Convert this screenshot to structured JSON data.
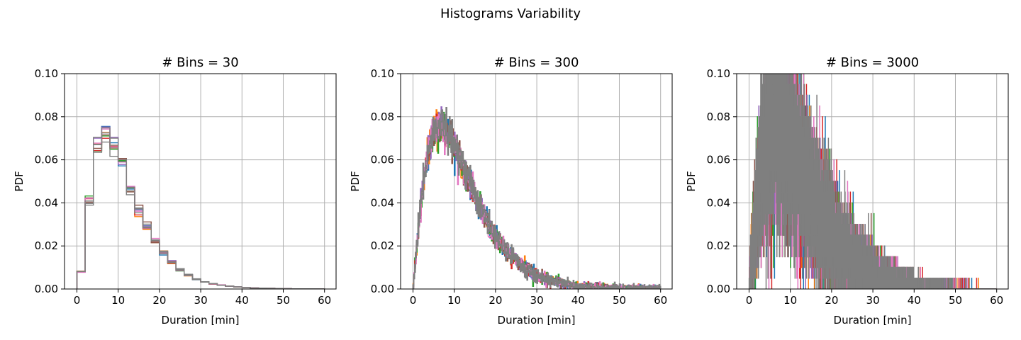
{
  "figure": {
    "title": "Histograms Variability"
  },
  "chart_data": [
    {
      "type": "histogram",
      "title": "# Bins = 30",
      "xlabel": "Duration [min]",
      "ylabel": "PDF",
      "xlim": [
        -3,
        62.8
      ],
      "ylim": [
        0,
        0.1
      ],
      "xticks": [
        0,
        10,
        20,
        30,
        40,
        50,
        60
      ],
      "xtick_labels": [
        "0",
        "10",
        "20",
        "30",
        "40",
        "50",
        "60"
      ],
      "yticks": [
        0,
        0.02,
        0.04,
        0.06,
        0.08,
        0.1
      ],
      "ytick_labels": [
        "0.00",
        "0.02",
        "0.04",
        "0.06",
        "0.08",
        "0.10"
      ],
      "grid": true,
      "bins": 30,
      "x_range": [
        0,
        60
      ],
      "pdf": [
        0.008,
        0.041,
        0.068,
        0.072,
        0.067,
        0.058,
        0.046,
        0.037,
        0.029,
        0.022,
        0.017,
        0.0125,
        0.009,
        0.0065,
        0.0045,
        0.0033,
        0.0024,
        0.0018,
        0.0013,
        0.001,
        0.0007,
        0.0005,
        0.0004,
        0.0003,
        0.0002,
        0.00015,
        0.0001,
        8e-05,
        5e-05,
        3e-05
      ],
      "series_count": 10
    },
    {
      "type": "histogram",
      "title": "# Bins = 300",
      "xlabel": "Duration [min]",
      "ylabel": "PDF",
      "xlim": [
        -3,
        62.8
      ],
      "ylim": [
        0,
        0.1
      ],
      "xticks": [
        0,
        10,
        20,
        30,
        40,
        50,
        60
      ],
      "xtick_labels": [
        "0",
        "10",
        "20",
        "30",
        "40",
        "50",
        "60"
      ],
      "yticks": [
        0,
        0.02,
        0.04,
        0.06,
        0.08,
        0.1
      ],
      "ytick_labels": [
        "0.00",
        "0.02",
        "0.04",
        "0.06",
        "0.08",
        "0.10"
      ],
      "grid": true,
      "bins": 300,
      "x_range": [
        0,
        60
      ],
      "noise_amplitude": 0.004,
      "series_count": 10
    },
    {
      "type": "histogram",
      "title": "# Bins = 3000",
      "xlabel": "Duration [min]",
      "ylabel": "PDF",
      "xlim": [
        -3,
        62.8
      ],
      "ylim": [
        0,
        0.1
      ],
      "xticks": [
        0,
        10,
        20,
        30,
        40,
        50,
        60
      ],
      "xtick_labels": [
        "0",
        "10",
        "20",
        "30",
        "40",
        "50",
        "60"
      ],
      "yticks": [
        0,
        0.02,
        0.04,
        0.06,
        0.08,
        0.1
      ],
      "ytick_labels": [
        "0.00",
        "0.02",
        "0.04",
        "0.06",
        "0.08",
        "0.10"
      ],
      "grid": true,
      "bins": 3000,
      "x_range": [
        0,
        60
      ],
      "discrete_levels": [
        0,
        0.005,
        0.01,
        0.015,
        0.02,
        0.025,
        0.03,
        0.035,
        0.04,
        0.045,
        0.05,
        0.055,
        0.06,
        0.065,
        0.07,
        0.075,
        0.08,
        0.085,
        0.09,
        0.095,
        0.1
      ],
      "series_count": 10
    }
  ],
  "series_colors": [
    "#1f77b4",
    "#ff7f0e",
    "#2ca02c",
    "#d62728",
    "#9467bd",
    "#8c564b",
    "#e377c2",
    "#7f7f7f",
    "#7f7f7f",
    "#7f7f7f"
  ]
}
